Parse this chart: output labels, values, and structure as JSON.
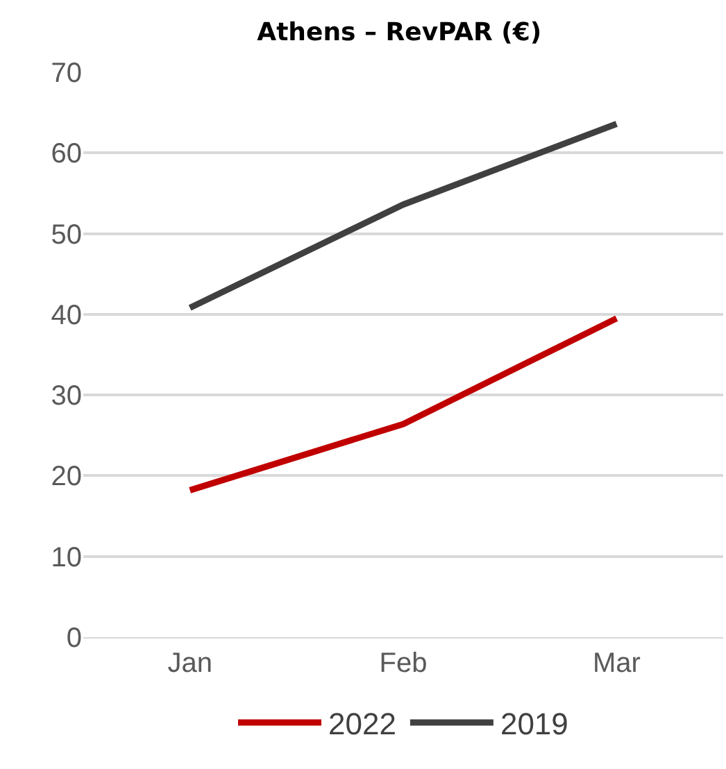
{
  "chart_data": {
    "type": "line",
    "title": "Athens – RevPAR (€)",
    "categories": [
      "Jan",
      "Feb",
      "Mar"
    ],
    "series": [
      {
        "name": "2022",
        "color": "#c00000",
        "values": [
          18.2,
          26.4,
          39.5
        ]
      },
      {
        "name": "2019",
        "color": "#404040",
        "values": [
          40.8,
          53.6,
          63.6
        ]
      }
    ],
    "ylim": [
      0,
      70
    ],
    "yticks": [
      0,
      10,
      20,
      30,
      40,
      50,
      60,
      70
    ],
    "grid": "y",
    "legend": "bottom",
    "marker": "none",
    "line_style": "solid"
  }
}
